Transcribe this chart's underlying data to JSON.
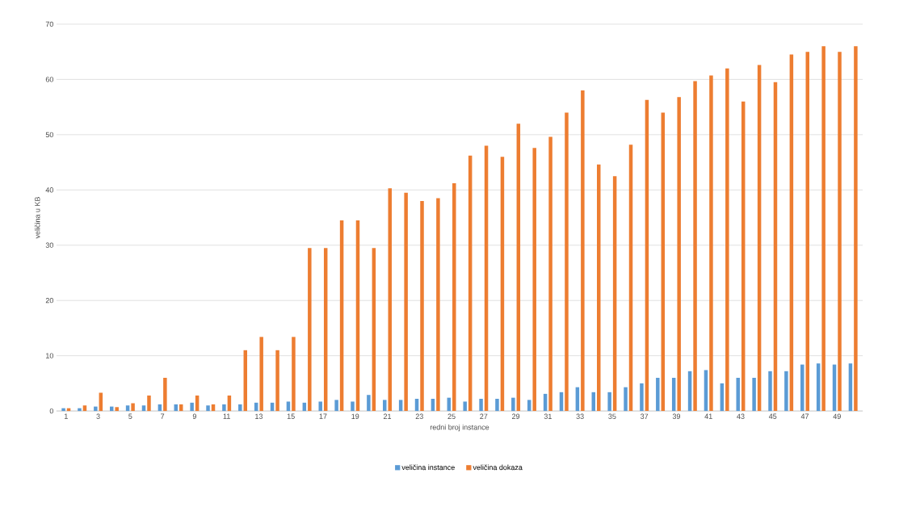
{
  "chart_data": {
    "type": "bar",
    "xlabel": "redni broj instance",
    "ylabel": "veličina u KB",
    "categories": [
      "1",
      null,
      "3",
      null,
      "5",
      null,
      "7",
      null,
      "9",
      null,
      "11",
      null,
      "13",
      null,
      "15",
      null,
      "17",
      null,
      "19",
      null,
      "21",
      null,
      "23",
      null,
      "25",
      null,
      "27",
      null,
      "29",
      null,
      "31",
      null,
      "33",
      null,
      "35",
      null,
      "37",
      null,
      "39",
      null,
      "41",
      null,
      "43",
      null,
      "45",
      null,
      "47",
      null,
      "49",
      null
    ],
    "series": [
      {
        "name": "veličina instance",
        "color": "#5b9bd5",
        "values": [
          0.5,
          0.5,
          0.8,
          0.8,
          1,
          1,
          1.2,
          1.2,
          1.5,
          1,
          1.2,
          1.2,
          1.5,
          1.5,
          1.7,
          1.5,
          1.7,
          2,
          1.7,
          2.9,
          2,
          2,
          2.2,
          2.2,
          2.4,
          1.7,
          2.2,
          2.2,
          2.4,
          2,
          3.1,
          3.4,
          4.3,
          3.4,
          3.4,
          4.3,
          5,
          6,
          6,
          7.2,
          7.4,
          5,
          6,
          6,
          7.2,
          7.2,
          8.4,
          8.6,
          8.4,
          8.6
        ]
      },
      {
        "name": "veličina dokaza",
        "color": "#ed7d31",
        "values": [
          0.5,
          1,
          3.3,
          0.7,
          1.4,
          2.8,
          6,
          1.2,
          2.8,
          1.2,
          2.8,
          11,
          13.4,
          11,
          13.4,
          29.5,
          29.5,
          34.5,
          34.5,
          29.5,
          40.3,
          39.5,
          38,
          38.5,
          41.2,
          46.2,
          48,
          46,
          52,
          47.6,
          49.6,
          54,
          58,
          44.6,
          42.5,
          48.2,
          56.3,
          54,
          56.8,
          59.7,
          60.7,
          62,
          56,
          62.6,
          59.5,
          64.5,
          65,
          66,
          65,
          66
        ]
      }
    ],
    "ylim": [
      0,
      70
    ],
    "yticks": [
      0,
      10,
      20,
      30,
      40,
      50,
      60,
      70
    ],
    "grid": "y",
    "legend": "bottom"
  }
}
